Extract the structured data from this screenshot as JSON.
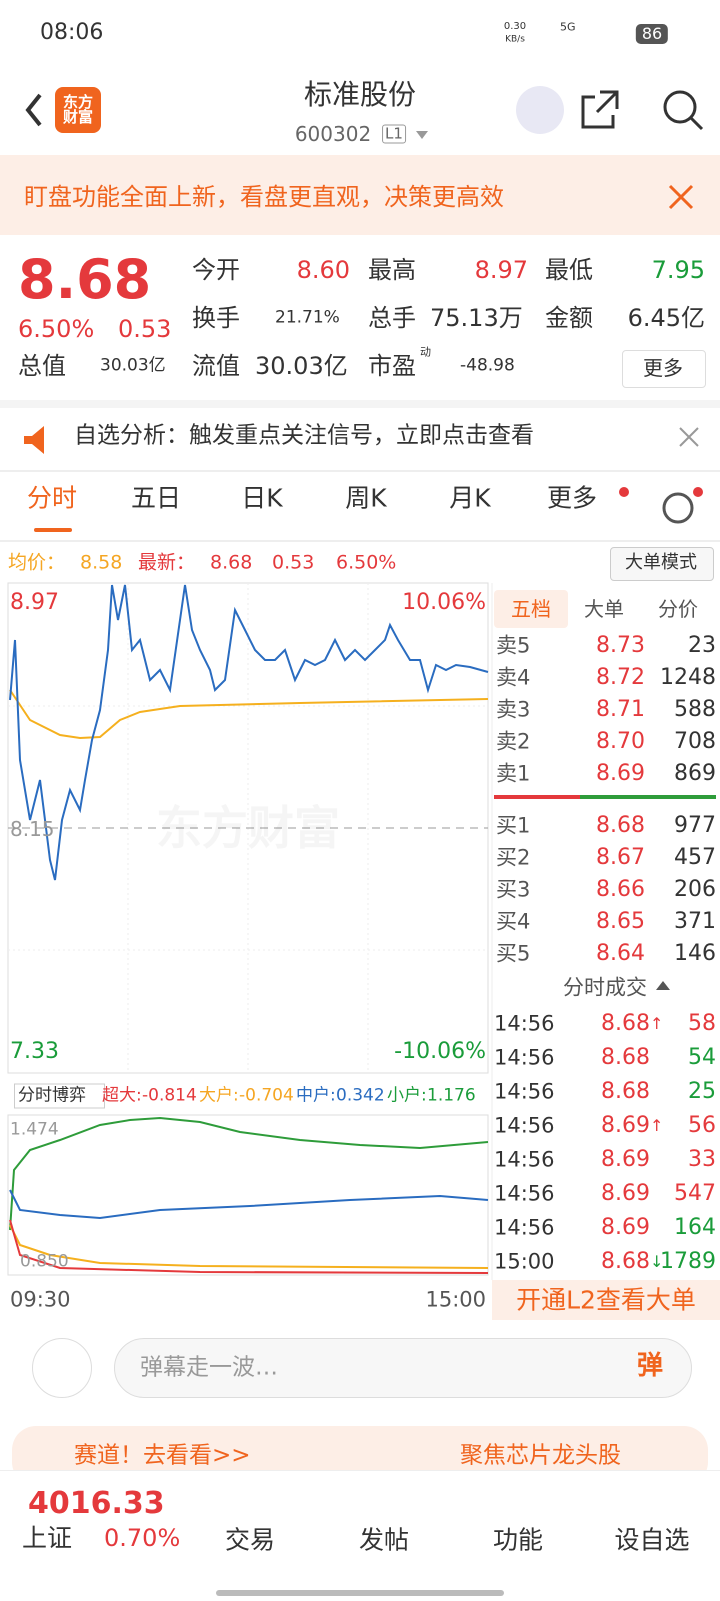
{
  "status_bar": {
    "time": "08:06",
    "speed": "0.30",
    "speed_unit": "KB/s",
    "network": "5G",
    "battery": "86"
  },
  "header": {
    "logo": "东方财富",
    "title": "标准股份",
    "code": "600302",
    "level": "L1"
  },
  "banner": {
    "text": "盯盘功能全面上新，看盘更直观，决策更高效"
  },
  "quote": {
    "price": "8.68",
    "change_pct": "6.50%",
    "change": "0.53",
    "more": "更多",
    "fields": [
      {
        "label": "今开",
        "value": "8.60"
      },
      {
        "label": "最高",
        "value": "8.97"
      },
      {
        "label": "最低",
        "value": "7.95"
      },
      {
        "label": "换手",
        "value": "21.71%"
      },
      {
        "label": "总手",
        "value": "75.13万"
      },
      {
        "label": "金额",
        "value": "6.45亿"
      },
      {
        "label": "总值",
        "value": "30.03亿"
      },
      {
        "label": "流值",
        "value": "30.03亿"
      },
      {
        "label": "市盈",
        "sup": "动",
        "value": "-48.98"
      }
    ]
  },
  "notice": {
    "text": "自选分析：触发重点关注信号，立即点击查看"
  },
  "tabs": [
    "分时",
    "五日",
    "日K",
    "周K",
    "月K",
    "更多"
  ],
  "info_line": {
    "avg_label": "均价：",
    "avg": "8.58",
    "latest_label": "最新：",
    "latest": "8.68",
    "change": "0.53",
    "pct": "6.50%",
    "mode": "大单模式"
  },
  "chart": {
    "high": "8.97",
    "high_pct": "10.06%",
    "mid": "8.15",
    "low": "7.33",
    "low_pct": "-10.06%",
    "watermark": "东方财富",
    "start": "09:30",
    "end": "15:00"
  },
  "flow": {
    "selector": "分时博弈",
    "items": [
      {
        "label": "超大:",
        "value": "-0.814"
      },
      {
        "label": "大户:",
        "value": "-0.704"
      },
      {
        "label": "中户:",
        "value": "0.342"
      },
      {
        "label": "小户:",
        "value": "1.176"
      }
    ],
    "top": "1.474",
    "bottom": "0.850"
  },
  "order_book": {
    "tabs": [
      "五档",
      "大单",
      "分价"
    ],
    "asks": [
      {
        "label": "卖5",
        "price": "8.73",
        "volume": "23"
      },
      {
        "label": "卖4",
        "price": "8.72",
        "volume": "1248"
      },
      {
        "label": "卖3",
        "price": "8.71",
        "volume": "588"
      },
      {
        "label": "卖2",
        "price": "8.70",
        "volume": "708"
      },
      {
        "label": "卖1",
        "price": "8.69",
        "volume": "869"
      }
    ],
    "bids": [
      {
        "label": "买1",
        "price": "8.68",
        "volume": "977"
      },
      {
        "label": "买2",
        "price": "8.67",
        "volume": "457"
      },
      {
        "label": "买3",
        "price": "8.66",
        "volume": "206"
      },
      {
        "label": "买4",
        "price": "8.65",
        "volume": "371"
      },
      {
        "label": "买5",
        "price": "8.64",
        "volume": "146"
      }
    ]
  },
  "trades": {
    "title": "分时成交",
    "rows": [
      {
        "time": "14:56",
        "price": "8.68",
        "arrow": "↑",
        "volume": "58"
      },
      {
        "time": "14:56",
        "price": "8.68",
        "volume": "54"
      },
      {
        "time": "14:56",
        "price": "8.68",
        "volume": "25"
      },
      {
        "time": "14:56",
        "price": "8.69",
        "arrow": "↑",
        "volume": "56"
      },
      {
        "time": "14:56",
        "price": "8.69",
        "volume": "33"
      },
      {
        "time": "14:56",
        "price": "8.69",
        "volume": "547"
      },
      {
        "time": "14:56",
        "price": "8.69",
        "volume": "164"
      },
      {
        "time": "15:00",
        "price": "8.68",
        "arrow": "↓",
        "volume": "1789"
      }
    ]
  },
  "promo": {
    "text": "开通L2查看大单"
  },
  "comment": {
    "placeholder": "弹幕走一波…",
    "button": "弹"
  },
  "ticker": {
    "left": "赛道！去看看>>",
    "right": "聚焦芯片龙头股"
  },
  "bottom": {
    "index_value": "4016.33",
    "index_name": "上证",
    "index_pct": "0.70%",
    "nav": [
      "交易",
      "发帖",
      "功能",
      "设自选"
    ]
  }
}
